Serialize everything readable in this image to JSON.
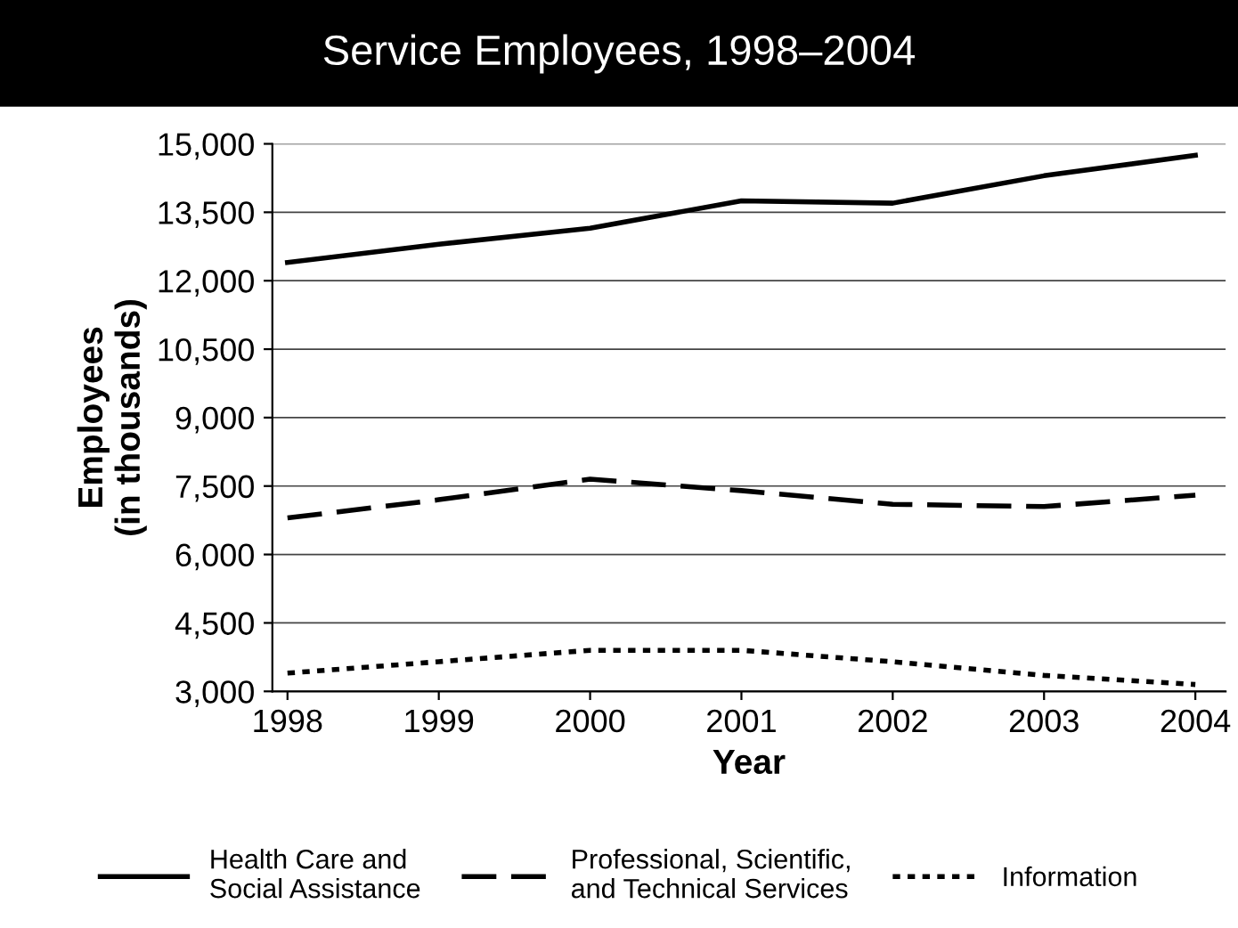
{
  "chart_data": {
    "type": "line",
    "title": "Service Employees, 1998–2004",
    "xlabel": "Year",
    "ylabel": "Employees\n(in thousands)",
    "x": [
      1998,
      1999,
      2000,
      2001,
      2002,
      2003,
      2004
    ],
    "xlim": [
      1997.9,
      2004.2
    ],
    "xticks": [
      1998,
      1999,
      2000,
      2001,
      2002,
      2003,
      2004
    ],
    "ylim": [
      3000,
      15000
    ],
    "yticks": [
      {
        "value": 3000,
        "label": "3,000"
      },
      {
        "value": 4500,
        "label": "4,500"
      },
      {
        "value": 6000,
        "label": "6,000"
      },
      {
        "value": 7500,
        "label": "7,500"
      },
      {
        "value": 9000,
        "label": "9,000"
      },
      {
        "value": 10500,
        "label": "10,500"
      },
      {
        "value": 12000,
        "label": "12,000"
      },
      {
        "value": 13500,
        "label": "13,500"
      },
      {
        "value": 15000,
        "label": "15,000"
      }
    ],
    "grid": "y",
    "legend": "bottom",
    "marker": "none",
    "series": [
      {
        "name": "Health Care and\nSocial Assistance",
        "color": "#000000",
        "line_style": "solid",
        "values": [
          12400,
          12800,
          13150,
          13750,
          13700,
          14300,
          14750
        ]
      },
      {
        "name": "Professional, Scientific,\nand Technical Services",
        "color": "#000000",
        "line_style": "dashed",
        "values": [
          6800,
          7200,
          7650,
          7400,
          7100,
          7050,
          7300
        ]
      },
      {
        "name": "Information",
        "color": "#000000",
        "line_style": "dotted",
        "values": [
          3400,
          3650,
          3900,
          3900,
          3650,
          3350,
          3150
        ]
      }
    ]
  }
}
